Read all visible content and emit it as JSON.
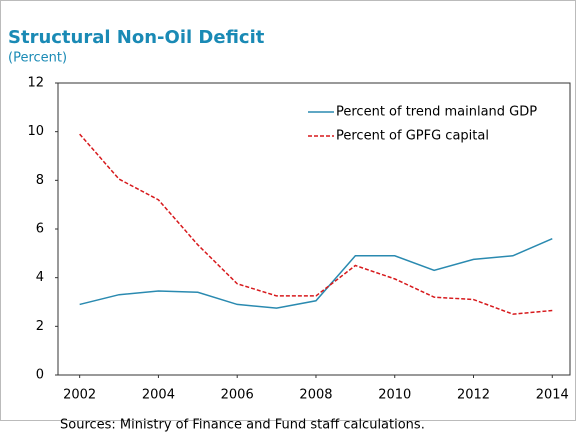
{
  "chart_data": {
    "type": "line",
    "title": "Structural Non-Oil Deficit",
    "subtitle": "(Percent)",
    "source": "Sources: Ministry of Finance and Fund staff calculations.",
    "x": [
      2002,
      2003,
      2004,
      2005,
      2006,
      2007,
      2008,
      2009,
      2010,
      2011,
      2012,
      2013,
      2014
    ],
    "series": [
      {
        "name": "Percent of trend mainland GDP",
        "color": "#2a8ab0",
        "dash": false,
        "values": [
          2.9,
          3.3,
          3.45,
          3.4,
          2.9,
          2.75,
          3.05,
          4.9,
          4.9,
          4.3,
          4.75,
          4.9,
          5.6
        ]
      },
      {
        "name": "Percent of GPFG capital",
        "color": "#d7191c",
        "dash": true,
        "values": [
          9.9,
          8.05,
          7.2,
          5.35,
          3.75,
          3.25,
          3.25,
          4.5,
          3.95,
          3.2,
          3.1,
          2.5,
          2.65
        ]
      }
    ],
    "xlim": [
      2001.45,
      2014.45
    ],
    "xticks": [
      2002,
      2004,
      2006,
      2008,
      2010,
      2012,
      2014
    ],
    "ylim": [
      0,
      12
    ],
    "yticks": [
      0,
      2,
      4,
      6,
      8,
      10,
      12
    ],
    "legend": "upper right",
    "title_color": "#1a8ab5"
  }
}
